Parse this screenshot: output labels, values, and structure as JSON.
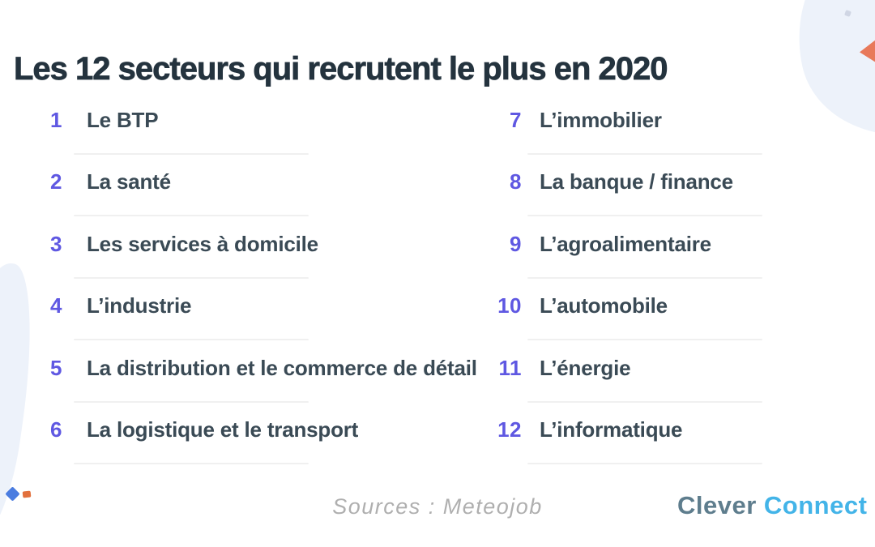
{
  "page": {
    "title": "Les 12 secteurs qui recrutent le plus en 2020",
    "source_label": "Sources : Meteojob",
    "logo": {
      "part1": "Clever",
      "part2": "Connect"
    },
    "sectors": [
      {
        "rank": "1",
        "label": "Le BTP"
      },
      {
        "rank": "2",
        "label": "La santé"
      },
      {
        "rank": "3",
        "label": "Les services à domicile"
      },
      {
        "rank": "4",
        "label": "L’industrie"
      },
      {
        "rank": "5",
        "label": "La distribution et le commerce de détail"
      },
      {
        "rank": "6",
        "label": "La logistique et le transport"
      },
      {
        "rank": "7",
        "label": "L’immobilier"
      },
      {
        "rank": "8",
        "label": "La banque / finance"
      },
      {
        "rank": "9",
        "label": "L’agroalimentaire"
      },
      {
        "rank": "10",
        "label": "L’automobile"
      },
      {
        "rank": "11",
        "label": "L’énergie"
      },
      {
        "rank": "12",
        "label": "L’informatique"
      }
    ],
    "colors": {
      "accent_purple": "#5F58E2",
      "text_dark": "#3A4A55",
      "title_dark": "#24333E",
      "divider": "#F0F0F0",
      "blob_blue": "#EDF2FA",
      "coral": "#E8795A",
      "royal_blue": "#4A7CE0",
      "orange": "#E2703C",
      "logo_gray": "#5E7D8D",
      "logo_blue": "#43B4E8",
      "source_gray": "#AFAFAF"
    }
  }
}
